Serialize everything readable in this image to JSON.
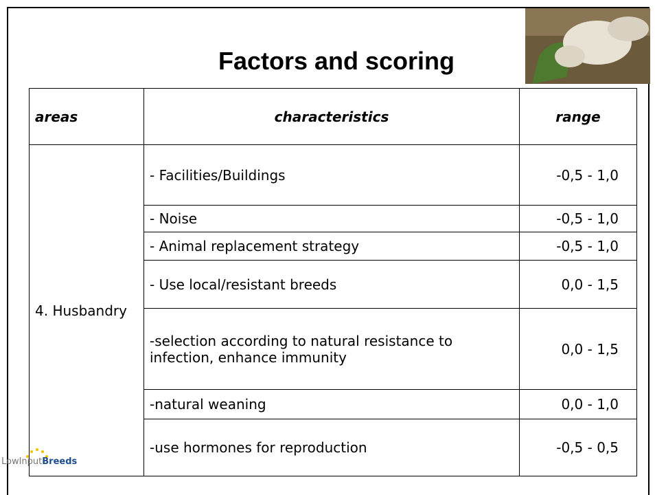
{
  "title": "Factors and scoring",
  "table": {
    "header": [
      "areas",
      "characteristics",
      "range"
    ],
    "area": "4. Husbandry",
    "rows": [
      [
        "- Facilities/Buildings",
        "-0,5 - 1,0"
      ],
      [
        "- Noise",
        "-0,5 - 1,0"
      ],
      [
        "- Animal replacement strategy",
        "-0,5 - 1,0"
      ],
      [
        "- Use local/resistant breeds",
        "0,0 - 1,5"
      ],
      [
        "-selection according to natural resistance to infection, enhance immunity",
        "0,0 - 1,5"
      ],
      [
        "-natural weaning",
        "0,0 - 1,0"
      ],
      [
        "-use hormones for reproduction",
        "-0,5 - 0,5"
      ]
    ]
  },
  "logo": {
    "part1": "LowInput",
    "part2": "Breeds"
  }
}
